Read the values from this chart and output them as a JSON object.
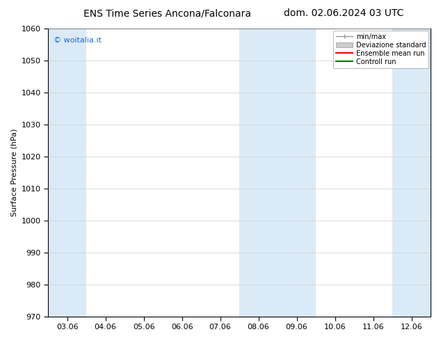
{
  "title_left": "ENS Time Series Ancona/Falconara",
  "title_right": "dom. 02.06.2024 03 UTC",
  "ylabel": "Surface Pressure (hPa)",
  "ylim": [
    970,
    1060
  ],
  "yticks": [
    970,
    980,
    990,
    1000,
    1010,
    1020,
    1030,
    1040,
    1050,
    1060
  ],
  "x_tick_labels": [
    "03.06",
    "04.06",
    "05.06",
    "06.06",
    "07.06",
    "08.06",
    "09.06",
    "10.06",
    "11.06",
    "12.06"
  ],
  "x_tick_positions": [
    0,
    1,
    2,
    3,
    4,
    5,
    6,
    7,
    8,
    9
  ],
  "xlim": [
    -0.5,
    9.5
  ],
  "shaded_bands": [
    {
      "x_start": -0.5,
      "x_end": 0.5
    },
    {
      "x_start": 4.5,
      "x_end": 6.5
    },
    {
      "x_start": 8.5,
      "x_end": 9.5
    }
  ],
  "shade_color": "#daeaf7",
  "watermark_text": "© woitalia.it",
  "watermark_color": "#1a6dc0",
  "legend_labels": [
    "min/max",
    "Deviazione standard",
    "Ensemble mean run",
    "Controll run"
  ],
  "legend_colors": [
    "#999999",
    "#cccccc",
    "#ff0000",
    "#007700"
  ],
  "grid_color": "#cccccc",
  "bg_color": "#ffffff",
  "title_fontsize": 10,
  "axis_fontsize": 8,
  "tick_fontsize": 8,
  "watermark_fontsize": 8
}
